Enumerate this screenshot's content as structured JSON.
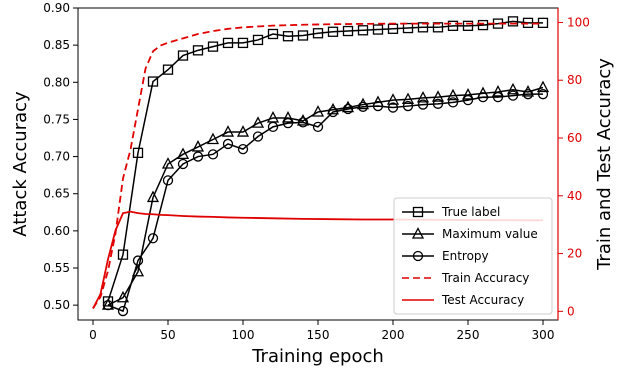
{
  "chart_data": {
    "type": "line",
    "xlabel": "Training epoch",
    "ylabel_left": "Attack Accuracy",
    "ylabel_right": "Train and Test Accuracy",
    "xlim": [
      -10,
      310
    ],
    "ylim_left": [
      0.48,
      0.9
    ],
    "ylim_right": [
      -3,
      105
    ],
    "x_ticks": [
      0,
      50,
      100,
      150,
      200,
      250,
      300
    ],
    "y_ticks_left": [
      0.5,
      0.55,
      0.6,
      0.65,
      0.7,
      0.75,
      0.8,
      0.85,
      0.9
    ],
    "y_ticks_right": [
      0,
      20,
      40,
      60,
      80,
      100
    ],
    "x_tick_labels": [
      "0",
      "50",
      "100",
      "150",
      "200",
      "250",
      "300"
    ],
    "y_tick_labels_left": [
      "0.50",
      "0.55",
      "0.60",
      "0.65",
      "0.70",
      "0.75",
      "0.80",
      "0.85",
      "0.90"
    ],
    "y_tick_labels_right": [
      "0",
      "20",
      "40",
      "60",
      "80",
      "100"
    ],
    "legend_position": "lower-right",
    "grid": false,
    "series": [
      {
        "name": "True label",
        "axis": "left",
        "color": "#000000",
        "marker": "square",
        "x": [
          10,
          20,
          30,
          40,
          50,
          60,
          70,
          80,
          90,
          100,
          110,
          120,
          130,
          140,
          150,
          160,
          170,
          180,
          190,
          200,
          210,
          220,
          230,
          240,
          250,
          260,
          270,
          280,
          290,
          300
        ],
        "y": [
          0.505,
          0.568,
          0.705,
          0.801,
          0.817,
          0.836,
          0.843,
          0.848,
          0.853,
          0.853,
          0.857,
          0.865,
          0.862,
          0.863,
          0.866,
          0.868,
          0.869,
          0.87,
          0.871,
          0.872,
          0.873,
          0.874,
          0.874,
          0.876,
          0.876,
          0.877,
          0.879,
          0.882,
          0.88,
          0.88
        ]
      },
      {
        "name": "Maximum value",
        "axis": "left",
        "color": "#000000",
        "marker": "triangle",
        "x": [
          10,
          20,
          30,
          40,
          50,
          60,
          70,
          80,
          90,
          100,
          110,
          120,
          130,
          140,
          150,
          160,
          170,
          180,
          190,
          200,
          210,
          220,
          230,
          240,
          250,
          260,
          270,
          280,
          290,
          300
        ],
        "y": [
          0.5,
          0.51,
          0.545,
          0.645,
          0.69,
          0.703,
          0.713,
          0.723,
          0.733,
          0.733,
          0.745,
          0.752,
          0.752,
          0.748,
          0.76,
          0.763,
          0.766,
          0.77,
          0.773,
          0.776,
          0.777,
          0.779,
          0.78,
          0.782,
          0.783,
          0.785,
          0.787,
          0.79,
          0.787,
          0.793
        ]
      },
      {
        "name": "Entropy",
        "axis": "left",
        "color": "#000000",
        "marker": "circle",
        "x": [
          10,
          20,
          30,
          40,
          50,
          60,
          70,
          80,
          90,
          100,
          110,
          120,
          130,
          140,
          150,
          160,
          170,
          180,
          190,
          200,
          210,
          220,
          230,
          240,
          250,
          260,
          270,
          280,
          290,
          300
        ],
        "y": [
          0.5,
          0.492,
          0.56,
          0.59,
          0.668,
          0.69,
          0.7,
          0.703,
          0.717,
          0.71,
          0.727,
          0.74,
          0.745,
          0.746,
          0.74,
          0.76,
          0.764,
          0.767,
          0.768,
          0.766,
          0.768,
          0.77,
          0.771,
          0.773,
          0.776,
          0.78,
          0.78,
          0.782,
          0.784,
          0.784
        ]
      },
      {
        "name": "Train Accuracy",
        "axis": "right",
        "color": "#e00000",
        "style": "dashed",
        "x": [
          0,
          5,
          10,
          15,
          20,
          25,
          30,
          35,
          40,
          45,
          50,
          60,
          70,
          80,
          90,
          100,
          120,
          140,
          160,
          180,
          200,
          250,
          300
        ],
        "y": [
          1,
          5,
          14,
          27,
          46,
          56,
          70,
          84,
          90,
          92,
          93,
          94.5,
          96,
          97,
          97.8,
          98.3,
          98.9,
          99.2,
          99.4,
          99.5,
          99.6,
          99.6,
          99.6
        ]
      },
      {
        "name": "Test Accuracy",
        "axis": "right",
        "color": "#e00000",
        "style": "solid",
        "x": [
          0,
          5,
          10,
          15,
          20,
          25,
          30,
          35,
          40,
          45,
          50,
          60,
          70,
          80,
          90,
          100,
          120,
          140,
          160,
          180,
          200,
          250,
          300
        ],
        "y": [
          1,
          6,
          18,
          28,
          34,
          34.5,
          34,
          33.7,
          33.6,
          33.4,
          33.3,
          33.0,
          32.8,
          32.7,
          32.5,
          32.4,
          32.2,
          32.0,
          31.9,
          31.8,
          31.8,
          31.6,
          31.5
        ]
      }
    ]
  }
}
